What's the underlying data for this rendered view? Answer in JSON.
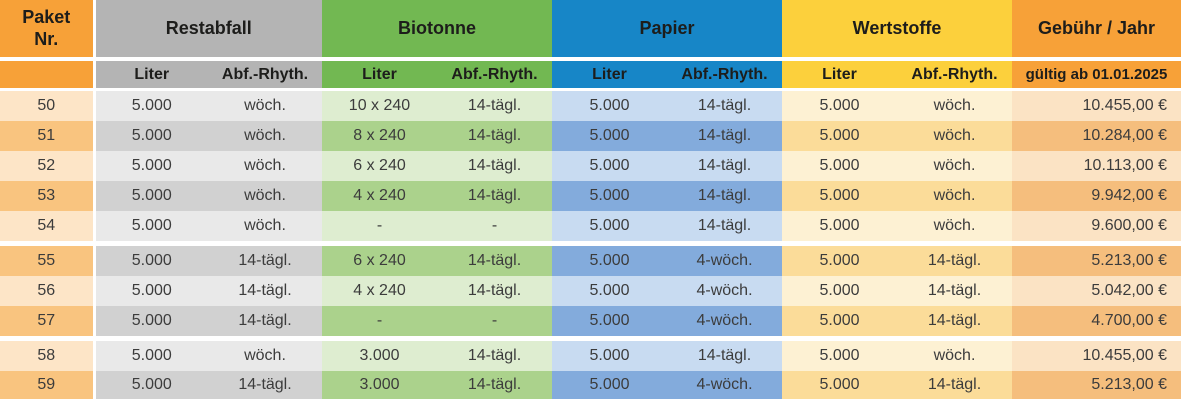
{
  "table": {
    "title_cell": "Paket\nNr.",
    "groups": [
      {
        "id": "restabfall",
        "label": "Restabfall"
      },
      {
        "id": "biotonne",
        "label": "Biotonne"
      },
      {
        "id": "papier",
        "label": "Papier"
      },
      {
        "id": "wertstoffe",
        "label": "Wertstoffe"
      },
      {
        "id": "gebuehr",
        "label": "Gebühr / Jahr"
      }
    ],
    "sub": {
      "liter": "Liter",
      "rhythmus": "Abf.-Rhyth.",
      "gebuehr_note": "gültig ab 01.01.2025"
    },
    "rows": [
      {
        "nr": "50",
        "restabfall": {
          "liter": "5.000",
          "rhythmus": "wöch."
        },
        "biotonne": {
          "liter": "10 x 240",
          "rhythmus": "14-tägl."
        },
        "papier": {
          "liter": "5.000",
          "rhythmus": "14-tägl."
        },
        "wertstoffe": {
          "liter": "5.000",
          "rhythmus": "wöch."
        },
        "gebuehr": "10.455,00 €",
        "shade": "light",
        "group_end": false
      },
      {
        "nr": "51",
        "restabfall": {
          "liter": "5.000",
          "rhythmus": "wöch."
        },
        "biotonne": {
          "liter": "8 x 240",
          "rhythmus": "14-tägl."
        },
        "papier": {
          "liter": "5.000",
          "rhythmus": "14-tägl."
        },
        "wertstoffe": {
          "liter": "5.000",
          "rhythmus": "wöch."
        },
        "gebuehr": "10.284,00 €",
        "shade": "dark",
        "group_end": false
      },
      {
        "nr": "52",
        "restabfall": {
          "liter": "5.000",
          "rhythmus": "wöch."
        },
        "biotonne": {
          "liter": "6 x 240",
          "rhythmus": "14-tägl."
        },
        "papier": {
          "liter": "5.000",
          "rhythmus": "14-tägl."
        },
        "wertstoffe": {
          "liter": "5.000",
          "rhythmus": "wöch."
        },
        "gebuehr": "10.113,00 €",
        "shade": "light",
        "group_end": false
      },
      {
        "nr": "53",
        "restabfall": {
          "liter": "5.000",
          "rhythmus": "wöch."
        },
        "biotonne": {
          "liter": "4 x 240",
          "rhythmus": "14-tägl."
        },
        "papier": {
          "liter": "5.000",
          "rhythmus": "14-tägl."
        },
        "wertstoffe": {
          "liter": "5.000",
          "rhythmus": "wöch."
        },
        "gebuehr": "9.942,00 €",
        "shade": "dark",
        "group_end": false
      },
      {
        "nr": "54",
        "restabfall": {
          "liter": "5.000",
          "rhythmus": "wöch."
        },
        "biotonne": {
          "liter": "-",
          "rhythmus": "-"
        },
        "papier": {
          "liter": "5.000",
          "rhythmus": "14-tägl."
        },
        "wertstoffe": {
          "liter": "5.000",
          "rhythmus": "wöch."
        },
        "gebuehr": "9.600,00 €",
        "shade": "light",
        "group_end": true
      },
      {
        "nr": "55",
        "restabfall": {
          "liter": "5.000",
          "rhythmus": "14-tägl."
        },
        "biotonne": {
          "liter": "6 x 240",
          "rhythmus": "14-tägl."
        },
        "papier": {
          "liter": "5.000",
          "rhythmus": "4-wöch."
        },
        "wertstoffe": {
          "liter": "5.000",
          "rhythmus": "14-tägl."
        },
        "gebuehr": "5.213,00 €",
        "shade": "dark",
        "group_end": false
      },
      {
        "nr": "56",
        "restabfall": {
          "liter": "5.000",
          "rhythmus": "14-tägl."
        },
        "biotonne": {
          "liter": "4 x 240",
          "rhythmus": "14-tägl."
        },
        "papier": {
          "liter": "5.000",
          "rhythmus": "4-wöch."
        },
        "wertstoffe": {
          "liter": "5.000",
          "rhythmus": "14-tägl."
        },
        "gebuehr": "5.042,00 €",
        "shade": "light",
        "group_end": false
      },
      {
        "nr": "57",
        "restabfall": {
          "liter": "5.000",
          "rhythmus": "14-tägl."
        },
        "biotonne": {
          "liter": "-",
          "rhythmus": "-"
        },
        "papier": {
          "liter": "5.000",
          "rhythmus": "4-wöch."
        },
        "wertstoffe": {
          "liter": "5.000",
          "rhythmus": "14-tägl."
        },
        "gebuehr": "4.700,00 €",
        "shade": "dark",
        "group_end": true
      },
      {
        "nr": "58",
        "restabfall": {
          "liter": "5.000",
          "rhythmus": "wöch."
        },
        "biotonne": {
          "liter": "3.000",
          "rhythmus": "14-tägl."
        },
        "papier": {
          "liter": "5.000",
          "rhythmus": "14-tägl."
        },
        "wertstoffe": {
          "liter": "5.000",
          "rhythmus": "wöch."
        },
        "gebuehr": "10.455,00 €",
        "shade": "light",
        "group_end": false
      },
      {
        "nr": "59",
        "restabfall": {
          "liter": "5.000",
          "rhythmus": "14-tägl."
        },
        "biotonne": {
          "liter": "3.000",
          "rhythmus": "14-tägl."
        },
        "papier": {
          "liter": "5.000",
          "rhythmus": "4-wöch."
        },
        "wertstoffe": {
          "liter": "5.000",
          "rhythmus": "14-tägl."
        },
        "gebuehr": "5.213,00 €",
        "shade": "dark",
        "group_end": false
      }
    ]
  },
  "colors": {
    "header_orange": "#F7A138",
    "header_gray": "#B4B4B4",
    "header_green": "#72B852",
    "header_blue": "#1786C7",
    "header_yellow": "#FCD03C",
    "row_light_paket": "#FDE5C7",
    "row_dark_paket": "#F9C47F",
    "row_light_restabfall": "#E9E9E9",
    "row_dark_restabfall": "#D1D1D1",
    "row_light_biotonne": "#DEEDD0",
    "row_dark_biotonne": "#ABD28C",
    "row_light_papier": "#C8DBF1",
    "row_dark_papier": "#83ABDC",
    "row_light_wertstoffe": "#FDF1D3",
    "row_dark_wertstoffe": "#FBDC99",
    "row_light_gebuehr": "#FBE3C4",
    "row_dark_gebuehr": "#F5BE7D"
  }
}
